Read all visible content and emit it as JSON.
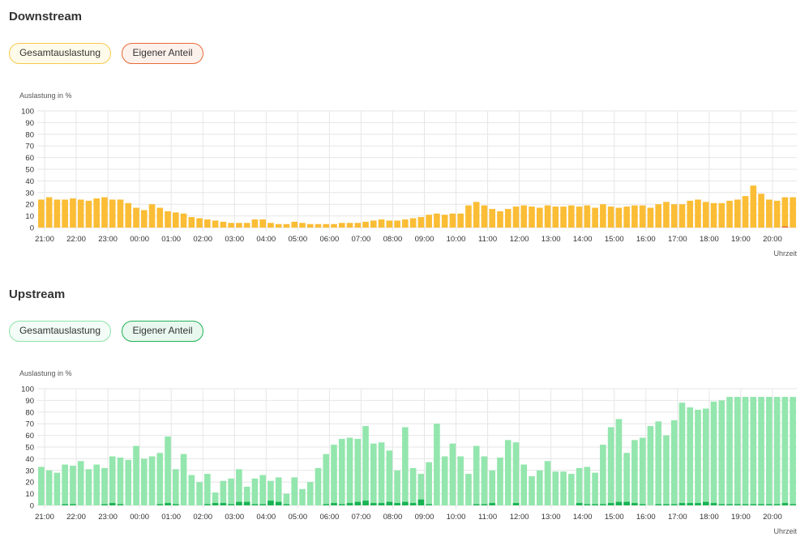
{
  "downstream": {
    "title": "Downstream",
    "legend": {
      "total": "Gesamtauslastung",
      "own": "Eigener Anteil"
    }
  },
  "upstream": {
    "title": "Upstream",
    "legend": {
      "total": "Gesamtauslastung",
      "own": "Eigener Anteil"
    }
  },
  "colors": {
    "down_total": "#fbbd35",
    "down_own": "#e86a36",
    "up_total": "#93e6ad",
    "up_own": "#18b352",
    "grid": "#e6e6e6"
  },
  "chart_data": [
    {
      "type": "bar",
      "ylabel": "Auslastung in %",
      "xlabel": "Uhrzeit",
      "ylim": [
        0,
        100
      ],
      "yticks": [
        0,
        10,
        20,
        30,
        40,
        50,
        60,
        70,
        80,
        90,
        100
      ],
      "xticks": [
        "21:00",
        "22:00",
        "23:00",
        "00:00",
        "01:00",
        "02:00",
        "03:00",
        "04:00",
        "05:00",
        "06:00",
        "07:00",
        "08:00",
        "09:00",
        "10:00",
        "11:00",
        "12:00",
        "13:00",
        "14:00",
        "15:00",
        "16:00",
        "17:00",
        "18:00",
        "19:00",
        "20:00"
      ],
      "bars_per_hour": 4,
      "grid": true,
      "series": [
        {
          "name": "Gesamtauslastung",
          "values": [
            24,
            26,
            24,
            24,
            25,
            24,
            23,
            25,
            26,
            24,
            24,
            21,
            17,
            15,
            20,
            17,
            14,
            13,
            12,
            9,
            8,
            7,
            6,
            5,
            4,
            4,
            4,
            7,
            7,
            4,
            3,
            3,
            5,
            4,
            3,
            3,
            3,
            3,
            4,
            4,
            4,
            5,
            6,
            7,
            6,
            6,
            7,
            8,
            9,
            11,
            12,
            11,
            12,
            12,
            19,
            22,
            19,
            16,
            14,
            16,
            18,
            19,
            18,
            17,
            19,
            18,
            18,
            19,
            18,
            19,
            17,
            20,
            18,
            17,
            18,
            19,
            19,
            17,
            20,
            22,
            20,
            20,
            23,
            24,
            22,
            21,
            21,
            23,
            24,
            27,
            36,
            29,
            24,
            23,
            26,
            26
          ]
        },
        {
          "name": "Eigener Anteil",
          "values": [
            0,
            0,
            0,
            0,
            0,
            0,
            0,
            0,
            0,
            0,
            0,
            0,
            0,
            0,
            0,
            0,
            0,
            0,
            0,
            0,
            0,
            0,
            0,
            0,
            0,
            0,
            0,
            0,
            0,
            0,
            0,
            0,
            0,
            0,
            0,
            0,
            0,
            0,
            0,
            0,
            0,
            0,
            0,
            0,
            0,
            0,
            0,
            0,
            0,
            0,
            0,
            0,
            0,
            0,
            0,
            0,
            0,
            0,
            0,
            0,
            0,
            0,
            0,
            0,
            0,
            0,
            0,
            0,
            0,
            0,
            0,
            0,
            0,
            0,
            0,
            0,
            0,
            0,
            0,
            0,
            0,
            0,
            0,
            0,
            0,
            0,
            0,
            0,
            0,
            0,
            0,
            0,
            0,
            0,
            1,
            0
          ]
        }
      ]
    },
    {
      "type": "bar",
      "ylabel": "Auslastung in %",
      "xlabel": "Uhrzeit",
      "ylim": [
        0,
        100
      ],
      "yticks": [
        0,
        10,
        20,
        30,
        40,
        50,
        60,
        70,
        80,
        90,
        100
      ],
      "xticks": [
        "21:00",
        "22:00",
        "23:00",
        "00:00",
        "01:00",
        "02:00",
        "03:00",
        "04:00",
        "05:00",
        "06:00",
        "07:00",
        "08:00",
        "09:00",
        "10:00",
        "11:00",
        "12:00",
        "13:00",
        "14:00",
        "15:00",
        "16:00",
        "17:00",
        "18:00",
        "19:00",
        "20:00"
      ],
      "bars_per_hour": 4,
      "grid": true,
      "series": [
        {
          "name": "Gesamtauslastung",
          "values": [
            33,
            30,
            28,
            35,
            34,
            38,
            31,
            35,
            32,
            42,
            41,
            39,
            51,
            40,
            42,
            45,
            59,
            31,
            44,
            26,
            20,
            27,
            11,
            21,
            23,
            31,
            16,
            23,
            26,
            21,
            24,
            10,
            24,
            14,
            20,
            32,
            44,
            52,
            57,
            58,
            57,
            68,
            53,
            54,
            47,
            30,
            67,
            32,
            27,
            37,
            70,
            42,
            53,
            42,
            27,
            51,
            42,
            30,
            41,
            56,
            54,
            35,
            25,
            30,
            38,
            29,
            29,
            27,
            32,
            33,
            28,
            52,
            67,
            74,
            45,
            56,
            58,
            68,
            72,
            60,
            73,
            88,
            84,
            82,
            83,
            89,
            90,
            93,
            93,
            93,
            93,
            93,
            93,
            93,
            93,
            93
          ]
        },
        {
          "name": "Eigener Anteil",
          "values": [
            0,
            0,
            0,
            1,
            1,
            0,
            0,
            0,
            1,
            2,
            1,
            0,
            0,
            0,
            0,
            1,
            2,
            1,
            0,
            0,
            0,
            1,
            2,
            2,
            1,
            3,
            3,
            1,
            1,
            4,
            3,
            1,
            0,
            0,
            0,
            0,
            1,
            2,
            1,
            2,
            3,
            4,
            2,
            2,
            3,
            2,
            3,
            2,
            5,
            1,
            0,
            0,
            0,
            0,
            0,
            1,
            1,
            2,
            0,
            0,
            2,
            0,
            0,
            0,
            0,
            0,
            0,
            0,
            2,
            1,
            1,
            1,
            2,
            3,
            3,
            2,
            1,
            0,
            1,
            1,
            1,
            2,
            2,
            2,
            3,
            2,
            1,
            1,
            1,
            1,
            1,
            1,
            1,
            1,
            2,
            1
          ]
        }
      ]
    }
  ]
}
